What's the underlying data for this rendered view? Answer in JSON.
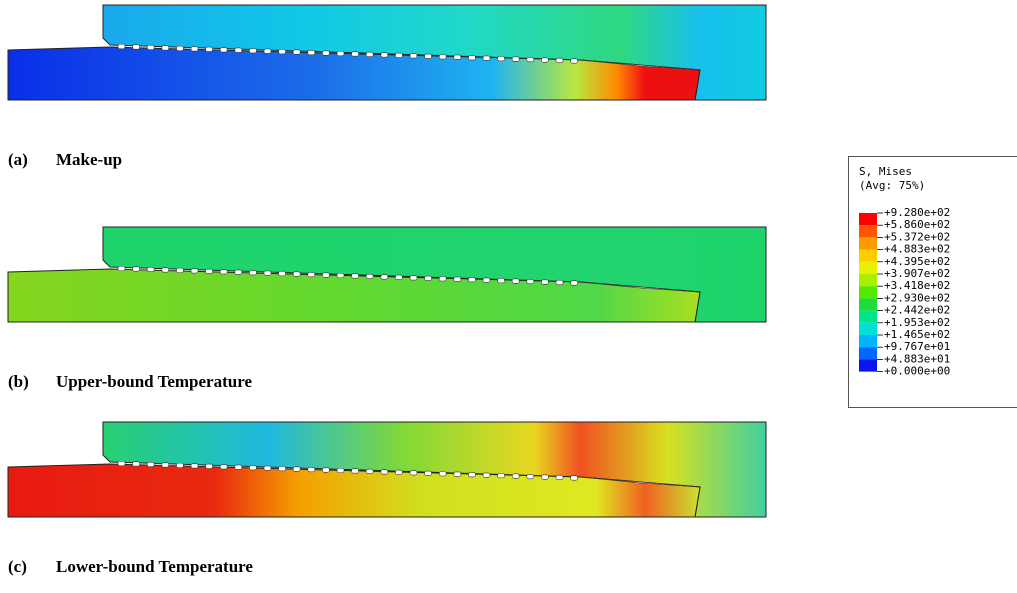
{
  "figures": [
    {
      "label": "(a)",
      "caption": "Make-up"
    },
    {
      "label": "(b)",
      "caption": "Upper-bound Temperature"
    },
    {
      "label": "(c)",
      "caption": "Lower-bound Temperature"
    }
  ],
  "legend": {
    "title": "S, Mises",
    "subtitle": "(Avg: 75%)",
    "labels": [
      "+9.280e+02",
      "+5.860e+02",
      "+5.372e+02",
      "+4.883e+02",
      "+4.395e+02",
      "+3.907e+02",
      "+3.418e+02",
      "+2.930e+02",
      "+2.442e+02",
      "+1.953e+02",
      "+1.465e+02",
      "+9.767e+01",
      "+4.883e+01",
      "+0.000e+00"
    ],
    "colors": [
      "#ff0000",
      "#ff5500",
      "#ff9900",
      "#ffcc00",
      "#e8f000",
      "#a8ee00",
      "#55e800",
      "#1fdc3a",
      "#00e58a",
      "#00e0d8",
      "#00b4ff",
      "#0068ff",
      "#0a14f0"
    ]
  }
}
